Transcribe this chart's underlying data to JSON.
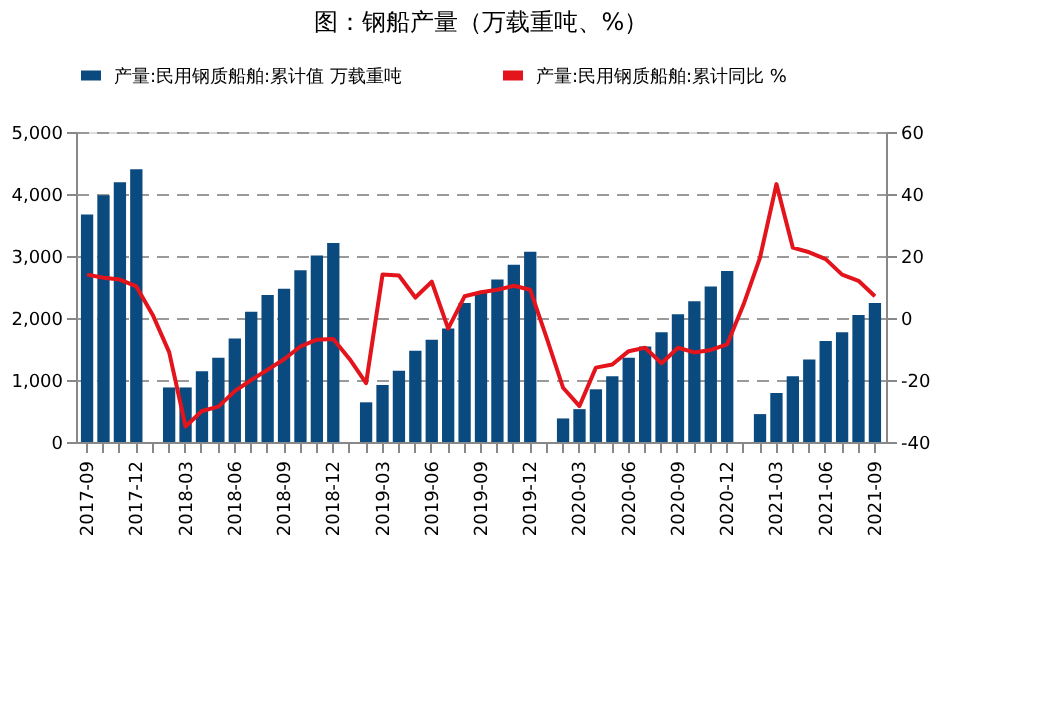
{
  "chart_data": {
    "type": "bar",
    "title": "图：钢船产量（万载重吨、%）",
    "categories": [
      "2017-09",
      null,
      null,
      "2017-12",
      null,
      null,
      "2018-03",
      null,
      null,
      "2018-06",
      null,
      null,
      "2018-09",
      null,
      null,
      "2018-12",
      null,
      null,
      "2019-03",
      null,
      null,
      "2019-06",
      null,
      null,
      "2019-09",
      null,
      null,
      "2019-12",
      null,
      null,
      "2020-03",
      null,
      null,
      "2020-06",
      null,
      null,
      "2020-09",
      null,
      null,
      "2020-12",
      null,
      null,
      "2021-03",
      null,
      null,
      "2021-06",
      null,
      null,
      "2021-09"
    ],
    "series": [
      {
        "name": "产量:民用钢质船舶:累计值 万载重吨",
        "color": "#0b4a7f",
        "values": [
          3670,
          3980,
          4190,
          4400,
          null,
          880,
          880,
          1140,
          1360,
          1670,
          2100,
          2370,
          2470,
          2770,
          3010,
          3210,
          null,
          640,
          920,
          1150,
          1470,
          1650,
          1830,
          2240,
          2410,
          2620,
          2860,
          3070,
          null,
          380,
          530,
          850,
          1060,
          1360,
          1540,
          1770,
          2060,
          2270,
          2510,
          2760,
          null,
          450,
          790,
          1060,
          1330,
          1630,
          1770,
          2050,
          2240
        ]
      },
      {
        "name": "产量:民用钢质船舶:累计同比 %",
        "color": "#e3141c",
        "type": "line",
        "axis": "y2",
        "values": [
          14,
          13,
          12.4,
          10.2,
          1,
          -11,
          -35,
          -30,
          -28.6,
          -23.6,
          -20,
          -16.7,
          -13.3,
          -9.2,
          -7,
          -6.8,
          -13.3,
          -21,
          14,
          13.7,
          6.6,
          11.7,
          -3.4,
          7,
          8.3,
          9.1,
          10.4,
          9.1,
          -6.4,
          -22.5,
          -28.4,
          -16,
          -15,
          -10.7,
          -9.6,
          -14.6,
          -9.6,
          -11.1,
          -10.3,
          -8.5,
          4.4,
          19.5,
          43.2,
          22.7,
          21.2,
          19,
          14,
          12,
          7
        ]
      }
    ],
    "ylim": [
      0,
      5000
    ],
    "yticks": [
      0,
      {
        "value": 1000,
        "label": "1,000"
      },
      {
        "value": 2000,
        "label": "2,000"
      },
      {
        "value": 3000,
        "label": "3,000"
      },
      {
        "value": 4000,
        "label": "4,000"
      },
      {
        "value": 5000,
        "label": "5,000"
      }
    ],
    "y2lim": [
      -40,
      60
    ],
    "y2ticks": [
      -40,
      -20,
      0,
      20,
      40,
      60
    ],
    "grid": "y",
    "legend": "top",
    "line_style": "solid",
    "marker": "none"
  }
}
